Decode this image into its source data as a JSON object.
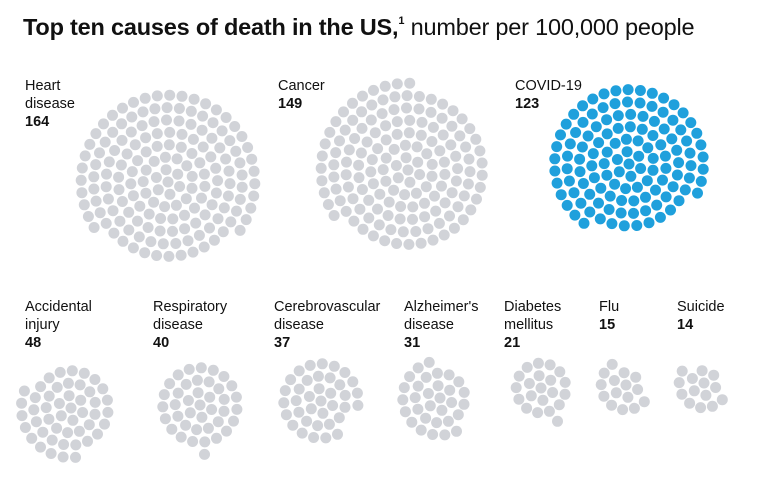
{
  "title": {
    "bold": "Top ten causes of death in the US,",
    "footnote": "1",
    "subtitle": "number per 100,000 people"
  },
  "colors": {
    "default": "#d1d3d8",
    "highlight": "#1fa0dc"
  },
  "chart_data": {
    "type": "bubble-dot",
    "unit": "number per 100,000 people",
    "categories": [
      "Heart disease",
      "Cancer",
      "COVID-19",
      "Accidental injury",
      "Respiratory disease",
      "Cerebrovascular disease",
      "Alzheimer's disease",
      "Diabetes mellitus",
      "Flu",
      "Suicide"
    ],
    "values": [
      164,
      149,
      123,
      48,
      40,
      37,
      31,
      21,
      15,
      14
    ],
    "labels": [
      "Heart\ndisease",
      "Cancer",
      "COVID-19",
      "Accidental\ninjury",
      "Respiratory\ndisease",
      "Cerebrovascular\ndisease",
      "Alzheimer's\ndisease",
      "Diabetes\nmellitus",
      "Flu",
      "Suicide"
    ],
    "value_labels": [
      "164",
      "149",
      "123",
      "48",
      "40",
      "37",
      "31",
      "21",
      "15",
      "14"
    ],
    "highlighted": "COVID-19"
  }
}
